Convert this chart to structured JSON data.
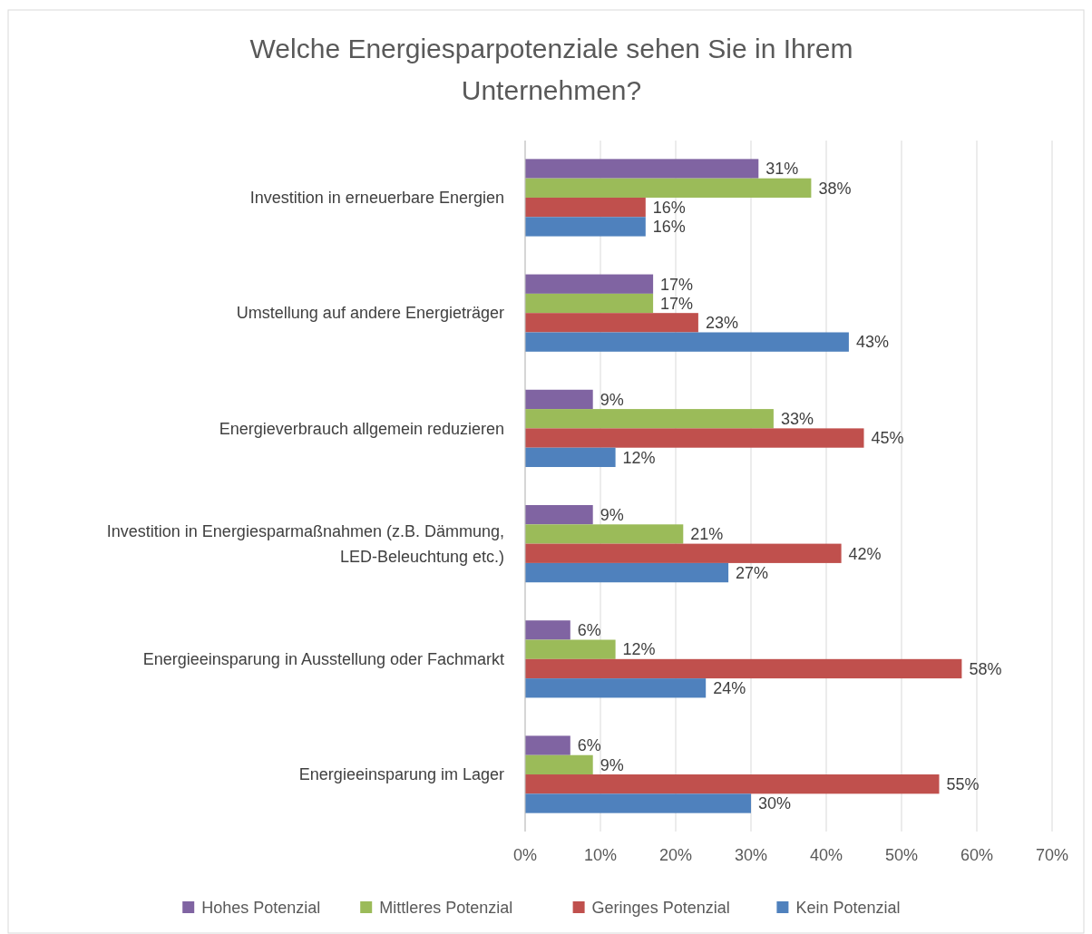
{
  "chart_data": {
    "type": "bar",
    "orientation": "horizontal",
    "title": "Welche Energiesparpotenziale sehen Sie in Ihrem Unternehmen?",
    "categories": [
      "Investition in erneuerbare Energien",
      "Umstellung auf andere Energieträger",
      "Energieverbrauch allgemein reduzieren",
      "Investition in Energiesparmaßnahmen (z.B. Dämmung, LED-Beleuchtung etc.)",
      "Energieeinsparung in Ausstellung oder Fachmarkt",
      "Energieeinsparung im Lager"
    ],
    "series": [
      {
        "name": "Hohes Potenzial",
        "color": "#8064a2",
        "values": [
          31,
          17,
          9,
          9,
          6,
          6
        ],
        "value_labels": [
          "31%",
          "17%",
          "9%",
          "9%",
          "6%",
          "6%"
        ]
      },
      {
        "name": "Mittleres Potenzial",
        "color": "#9bbb59",
        "values": [
          38,
          17,
          33,
          21,
          12,
          9
        ],
        "value_labels": [
          "38%",
          "17%",
          "33%",
          "21%",
          "12%",
          "9%"
        ]
      },
      {
        "name": "Geringes Potenzial",
        "color": "#c0504d",
        "values": [
          16,
          23,
          45,
          42,
          58,
          55
        ],
        "value_labels": [
          "16%",
          "23%",
          "45%",
          "42%",
          "58%",
          "55%"
        ]
      },
      {
        "name": "Kein Potenzial",
        "color": "#4f81bd",
        "values": [
          16,
          43,
          12,
          27,
          24,
          30
        ],
        "value_labels": [
          "16%",
          "43%",
          "12%",
          "27%",
          "24%",
          "30%"
        ]
      }
    ],
    "xlim": [
      0,
      70
    ],
    "xticks": [
      {
        "value": 0,
        "label": "0%"
      },
      {
        "value": 10,
        "label": "10%"
      },
      {
        "value": 20,
        "label": "20%"
      },
      {
        "value": 30,
        "label": "30%"
      },
      {
        "value": 40,
        "label": "40%"
      },
      {
        "value": 50,
        "label": "50%"
      },
      {
        "value": 60,
        "label": "60%"
      },
      {
        "value": 70,
        "label": "70%"
      }
    ],
    "grid": "x",
    "legend": "bottom"
  }
}
